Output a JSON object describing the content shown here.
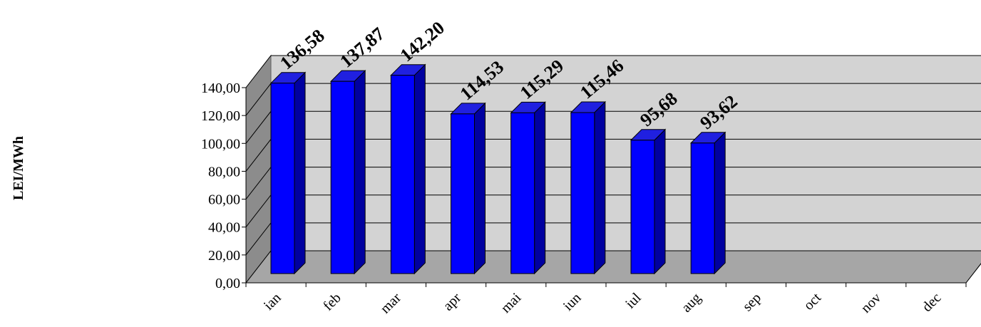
{
  "chart_data": {
    "type": "bar3d",
    "y_label": "LEI/MWh",
    "categories": [
      "ian",
      "feb",
      "mar",
      "apr",
      "mai",
      "iun",
      "iul",
      "aug",
      "sep",
      "oct",
      "nov",
      "dec"
    ],
    "values": [
      136.58,
      137.87,
      142.2,
      114.53,
      115.29,
      115.46,
      95.68,
      93.62,
      null,
      null,
      null,
      null
    ],
    "value_labels": [
      "136,58",
      "137,87",
      "142,20",
      "114,53",
      "115,29",
      "115,46",
      "95,68",
      "93,62",
      null,
      null,
      null,
      null
    ],
    "color": "#0000ff",
    "ylim": [
      0,
      140
    ],
    "yticks": [
      {
        "value": 0,
        "label": "0,00"
      },
      {
        "value": 20,
        "label": "20,00"
      },
      {
        "value": 40,
        "label": "40,00"
      },
      {
        "value": 60,
        "label": "60,00"
      },
      {
        "value": 80,
        "label": "80,00"
      },
      {
        "value": 100,
        "label": "100,00"
      },
      {
        "value": 120,
        "label": "120,00"
      },
      {
        "value": 140,
        "label": "140,00"
      }
    ],
    "grid": true
  }
}
